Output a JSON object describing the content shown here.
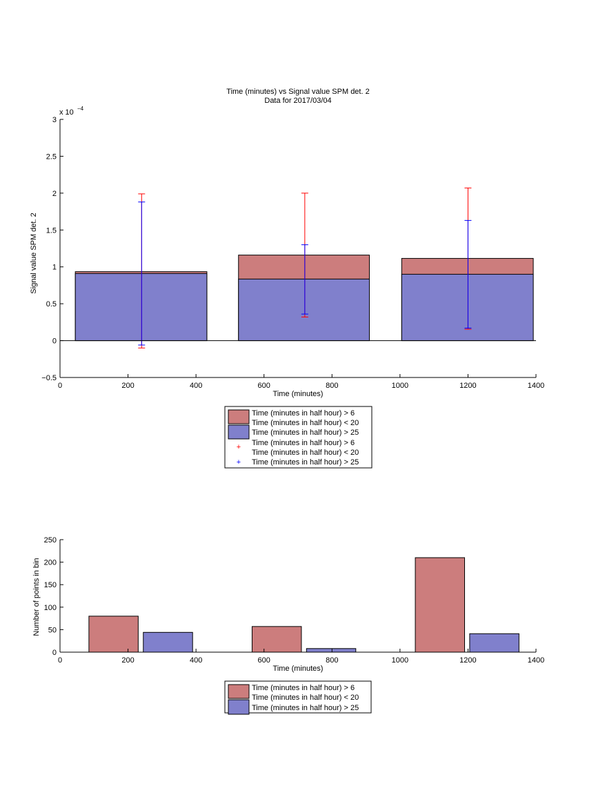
{
  "colors": {
    "red_fill": "#cc7d7d",
    "blue_fill": "#8080cc",
    "red_err": "#ff0000",
    "blue_err": "#0000ff"
  },
  "chart_data": [
    {
      "type": "bar",
      "title": "Time (minutes) vs Signal value SPM det. 2",
      "subtitle": "Data for 2017/03/04",
      "xlabel": "Time (minutes)",
      "ylabel": "Signal value SPM det. 2",
      "exponent_label": "x 10",
      "exponent_power": "−4",
      "xlim": [
        0,
        1400
      ],
      "ylim": [
        -0.5,
        3
      ],
      "xticks": [
        "0",
        "200",
        "400",
        "600",
        "800",
        "1000",
        "1200",
        "1400"
      ],
      "yticks": [
        "−0.5",
        "0",
        "0.5",
        "1",
        "1.5",
        "2",
        "2.5",
        "3"
      ],
      "bars": [
        {
          "x0": 45,
          "x1": 432,
          "red": 0.935,
          "blue": 0.91
        },
        {
          "x0": 525,
          "x1": 910,
          "red": 1.16,
          "blue": 0.835
        },
        {
          "x0": 1005,
          "x1": 1392,
          "red": 1.115,
          "blue": 0.9
        }
      ],
      "errorbars": [
        {
          "series": "red",
          "x": 240,
          "low": -0.1,
          "high": 1.99
        },
        {
          "series": "blue",
          "x": 240,
          "low": -0.06,
          "high": 1.88
        },
        {
          "series": "red",
          "x": 720,
          "low": 0.32,
          "high": 2.0
        },
        {
          "series": "blue",
          "x": 720,
          "low": 0.36,
          "high": 1.3
        },
        {
          "series": "red",
          "x": 1200,
          "low": 0.155,
          "high": 2.07
        },
        {
          "series": "blue",
          "x": 1200,
          "low": 0.17,
          "high": 1.63
        }
      ],
      "legend": [
        {
          "kind": "patch",
          "color": "red",
          "lines": [
            "Time (minutes in half hour) > 6",
            "Time (minutes in half hour) < 20"
          ]
        },
        {
          "kind": "patch",
          "color": "blue",
          "lines": [
            "Time (minutes in half hour) > 25"
          ]
        },
        {
          "kind": "marker",
          "color": "red",
          "lines": [
            "Time (minutes in half hour) > 6",
            "Time (minutes in half hour) < 20"
          ]
        },
        {
          "kind": "marker",
          "color": "blue",
          "lines": [
            "Time (minutes in half hour) > 25"
          ]
        }
      ]
    },
    {
      "type": "bar",
      "xlabel": "Time (minutes)",
      "ylabel": "Number of points in bin",
      "xlim": [
        0,
        1400
      ],
      "ylim": [
        0,
        250
      ],
      "xticks": [
        "0",
        "200",
        "400",
        "600",
        "800",
        "1000",
        "1200",
        "1400"
      ],
      "yticks": [
        "0",
        "50",
        "100",
        "150",
        "200",
        "250"
      ],
      "series": [
        {
          "color": "red",
          "bars": [
            {
              "x0": 85,
              "x1": 230,
              "value": 80
            },
            {
              "x0": 565,
              "x1": 710,
              "value": 57
            },
            {
              "x0": 1045,
              "x1": 1190,
              "value": 210
            }
          ]
        },
        {
          "color": "blue",
          "bars": [
            {
              "x0": 245,
              "x1": 390,
              "value": 44
            },
            {
              "x0": 725,
              "x1": 870,
              "value": 8
            },
            {
              "x0": 1205,
              "x1": 1350,
              "value": 41
            }
          ]
        }
      ],
      "legend": [
        {
          "kind": "patch",
          "color": "red",
          "lines": [
            "Time (minutes in half hour) > 6",
            "Time (minutes in half hour) < 20"
          ]
        },
        {
          "kind": "patch",
          "color": "blue",
          "lines": [
            "Time (minutes in half hour) > 25"
          ]
        }
      ]
    }
  ]
}
